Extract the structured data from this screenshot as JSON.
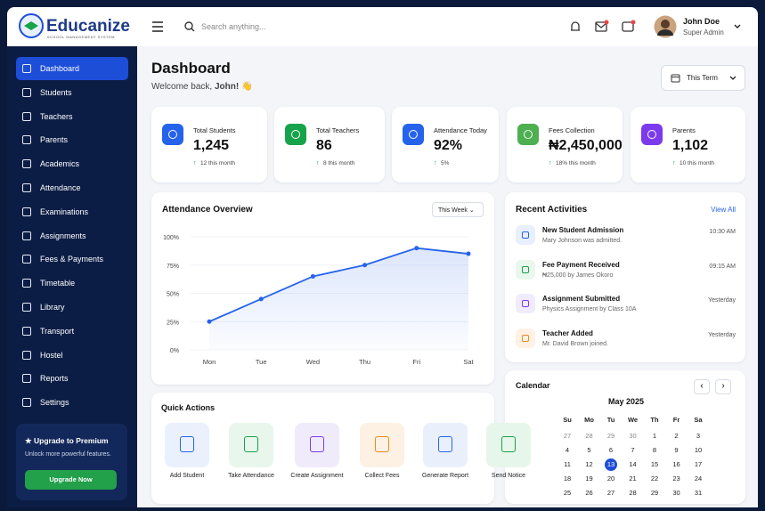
{
  "brand": {
    "name": "Educanize",
    "tagline": "SCHOOL MANAGEMENT SYSTEM"
  },
  "sidebar": {
    "nav": [
      "Dashboard",
      "Students",
      "Teachers",
      "Parents",
      "Academics",
      "Attendance",
      "Examinations",
      "Assignments",
      "Fees & Payments",
      "Timetable",
      "Library",
      "Transport",
      "Hostel",
      "Reports",
      "Settings"
    ],
    "promo": {
      "title": "Upgrade to Premium",
      "text": "Unlock more powerful features.",
      "button": "Upgrade Now"
    }
  },
  "header": {
    "search": "Search anything...",
    "user": "John Doe",
    "role": "Super Admin"
  },
  "page": {
    "title": "Dashboard",
    "greeting": "Welcome back,",
    "name": "John!",
    "wave": "👋",
    "period": "This Term"
  },
  "stats": [
    {
      "label": "Total Students",
      "value": "1,245",
      "change": "12 this month"
    },
    {
      "label": "Total Teachers",
      "value": "86",
      "change": "8 this month"
    },
    {
      "label": "Attendance Today",
      "value": "92%",
      "change": "5%"
    },
    {
      "label": "Fees Collection",
      "value": "₦2,450,000",
      "change": "18% this month"
    },
    {
      "label": "Parents",
      "value": "1,102",
      "change": "10 this month"
    }
  ],
  "chart_data": {
    "type": "line",
    "title": "Attendance Overview",
    "period": "This Week",
    "categories": [
      "Mon",
      "Tue",
      "Wed",
      "Thu",
      "Fri",
      "Sat"
    ],
    "series": [
      {
        "name": "Attendance",
        "color": "#2563eb",
        "values": [
          25,
          45,
          65,
          75,
          90,
          85
        ]
      }
    ],
    "ylim": [
      0,
      100
    ],
    "yticks": [
      {
        "value": 0,
        "label": "0%"
      },
      {
        "value": 25,
        "label": "25%"
      },
      {
        "value": 50,
        "label": "50%"
      },
      {
        "value": 75,
        "label": "75%"
      },
      {
        "value": 100,
        "label": "100%"
      }
    ],
    "grid": true
  },
  "activities": {
    "title": "Recent Activities",
    "link": "View All",
    "items": [
      {
        "title": "New Student Admission",
        "desc": "Mary Johnson was admitted.",
        "time": "10:30 AM"
      },
      {
        "title": "Fee Payment Received",
        "desc": "₦25,000 by James Okoro",
        "time": "09:15 AM"
      },
      {
        "title": "Assignment Submitted",
        "desc": "Physics Assignment by Class 10A",
        "time": "Yesterday"
      },
      {
        "title": "Teacher Added",
        "desc": "Mr. David Brown joined.",
        "time": "Yesterday"
      }
    ]
  },
  "calendar": {
    "title": "Calendar",
    "month": "May 2025",
    "weekdays": [
      "Su",
      "Mo",
      "Tu",
      "We",
      "Th",
      "Fr",
      "Sa"
    ],
    "prev_days": [
      27,
      28,
      29,
      30
    ],
    "days": [
      1,
      2,
      3,
      4,
      5,
      6,
      7,
      8,
      9,
      10,
      11,
      12,
      13,
      14,
      15,
      16,
      17,
      18,
      19,
      20,
      21,
      22,
      23,
      24,
      25,
      26,
      27,
      28,
      29,
      30,
      31
    ],
    "selected": 13
  },
  "quick_actions": {
    "title": "Quick Actions",
    "items": [
      "Add Student",
      "Take Attendance",
      "Create Assignment",
      "Collect Fees",
      "Generate Report",
      "Send Notice"
    ]
  }
}
